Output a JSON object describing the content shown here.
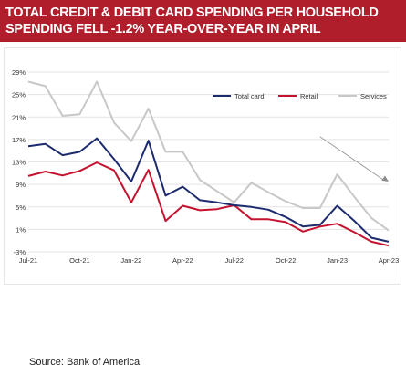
{
  "title_lines": [
    "TOTAL CREDIT & DEBIT CARD SPENDING PER HOUSEHOLD",
    "SPENDING FELL -1.2% YEAR-OVER-YEAR IN APRIL"
  ],
  "source": "Source:  Bank of America",
  "colors": {
    "banner": "#b01e2b",
    "total_card": "#1c2a6e",
    "retail": "#c4122f",
    "services": "#c8c8c8",
    "trend_arrow": "#8a8a8a"
  },
  "chart_data": {
    "type": "line",
    "x": [
      "Jul-21",
      "Aug-21",
      "Sep-21",
      "Oct-21",
      "Nov-21",
      "Dec-21",
      "Jan-22",
      "Feb-22",
      "Mar-22",
      "Apr-22",
      "May-22",
      "Jun-22",
      "Jul-22",
      "Aug-22",
      "Sep-22",
      "Oct-22",
      "Nov-22",
      "Dec-22",
      "Jan-23",
      "Feb-23",
      "Mar-23",
      "Apr-23"
    ],
    "x_tick_labels": [
      "Jul-21",
      "Oct-21",
      "Jan-22",
      "Apr-22",
      "Jul-22",
      "Oct-22",
      "Jan-23",
      "Apr-23"
    ],
    "x_tick_indices": [
      0,
      3,
      6,
      9,
      12,
      15,
      18,
      21
    ],
    "y_tick_labels": [
      "-3%",
      "1%",
      "5%",
      "9%",
      "13%",
      "17%",
      "21%",
      "25%",
      "29%"
    ],
    "ylim": [
      -3,
      29
    ],
    "grid": true,
    "legend_position": "top-right",
    "series": [
      {
        "name": "Total card",
        "color_key": "total_card",
        "values": [
          15.8,
          16.2,
          14.2,
          14.8,
          17.2,
          13.5,
          9.5,
          16.8,
          7.0,
          8.6,
          6.2,
          5.8,
          5.3,
          5.0,
          4.5,
          3.2,
          1.5,
          1.8,
          5.2,
          2.5,
          -0.5,
          -1.2
        ]
      },
      {
        "name": "Retail",
        "color_key": "retail",
        "values": [
          10.5,
          11.3,
          10.6,
          11.4,
          12.9,
          11.5,
          5.8,
          11.6,
          2.5,
          5.2,
          4.4,
          4.6,
          5.3,
          2.8,
          2.8,
          2.3,
          0.6,
          1.5,
          2.0,
          0.5,
          -1.2,
          -1.9
        ]
      },
      {
        "name": "Services",
        "color_key": "services",
        "values": [
          27.3,
          26.5,
          21.2,
          21.5,
          27.3,
          20.0,
          16.7,
          22.5,
          14.8,
          14.8,
          9.8,
          7.8,
          5.8,
          9.3,
          7.6,
          6.0,
          4.8,
          4.8,
          10.8,
          6.8,
          3.0,
          0.8
        ]
      }
    ],
    "trend_arrow": {
      "from": {
        "x": "Dec-22",
        "y": 17.5
      },
      "to": {
        "x": "Apr-23",
        "y": 9.5
      }
    }
  }
}
